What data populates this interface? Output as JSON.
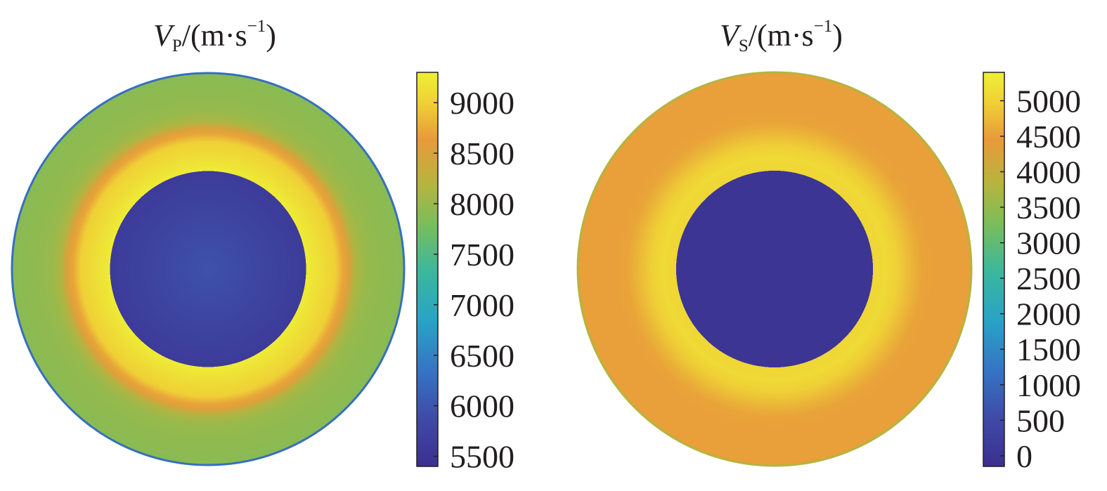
{
  "chart_data": [
    {
      "type": "heatmap",
      "title": {
        "symbol": "V",
        "subscript": "P",
        "unit": "/(m·s",
        "exponent": "−1",
        "close": ")"
      },
      "colorbar": {
        "range": [
          5400,
          9300
        ],
        "ticks": [
          5500,
          6000,
          6500,
          7000,
          7500,
          8000,
          8500,
          9000
        ],
        "tick_labels": [
          "5500",
          "6000",
          "6500",
          "7000",
          "7500",
          "8000",
          "8500",
          "9000"
        ]
      },
      "radial_profile": {
        "radius_fraction": [
          0,
          0.5,
          0.5,
          0.65,
          0.69,
          0.72,
          0.75,
          0.8,
          0.86,
          1.0
        ],
        "value": [
          5950,
          5600,
          9250,
          9000,
          8700,
          8500,
          8150,
          8000,
          7950,
          7900
        ]
      },
      "outline_value": 6300
    },
    {
      "type": "heatmap",
      "title": {
        "symbol": "V",
        "subscript": "S",
        "unit": "/(m·s",
        "exponent": "−1",
        "close": ")"
      },
      "colorbar": {
        "range": [
          -150,
          5400
        ],
        "ticks": [
          0,
          500,
          1000,
          1500,
          2000,
          2500,
          3000,
          3500,
          4000,
          4500,
          5000
        ],
        "tick_labels": [
          "0",
          "500",
          "1000",
          "1500",
          "2000",
          "2500",
          "3000",
          "3500",
          "4000",
          "4500",
          "5000"
        ]
      },
      "radial_profile": {
        "radius_fraction": [
          0,
          0.5,
          0.5,
          0.57,
          0.63,
          0.7,
          0.75,
          0.82,
          1.0
        ],
        "value": [
          0,
          0,
          5050,
          5100,
          4950,
          4700,
          4550,
          4500,
          4500
        ]
      },
      "outline_value": 3800
    }
  ]
}
